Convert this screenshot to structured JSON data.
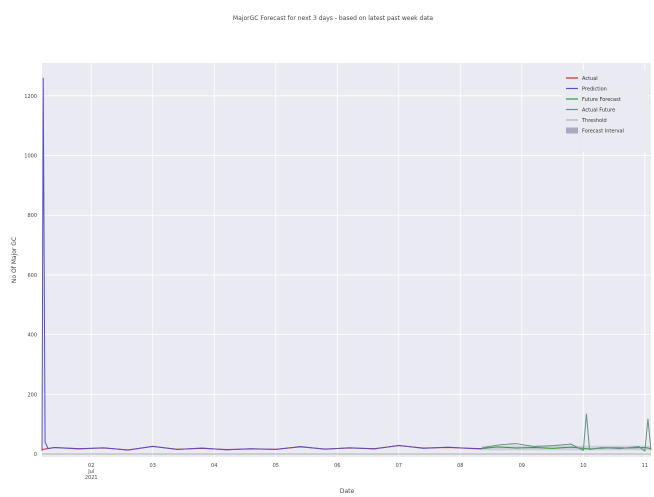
{
  "chart_data": {
    "type": "line",
    "title": "MajorGC Forecast for next 3 days - based on latest past week data",
    "xlabel": "Date",
    "ylabel": "No Of Major GC",
    "x_ticks": [
      "02\nJul\n2021",
      "03",
      "04",
      "05",
      "06",
      "07",
      "08",
      "09",
      "10",
      "11"
    ],
    "x_range_days": [
      1.2,
      11.1
    ],
    "ylim": [
      -10,
      1310
    ],
    "y_ticks": [
      0,
      200,
      400,
      600,
      800,
      1000,
      1200
    ],
    "grid": true,
    "legend_position": "top-right",
    "series": [
      {
        "name": "Actual",
        "color": "#d62728",
        "x": [
          1.2,
          1.4,
          1.8,
          2.2,
          2.6,
          3.0,
          3.4,
          3.8,
          4.2,
          4.6,
          5.0,
          5.4,
          5.8,
          6.2,
          6.6,
          7.0,
          7.4,
          7.8,
          8.2,
          8.35
        ],
        "y": [
          15,
          22,
          18,
          20,
          14,
          25,
          16,
          19,
          15,
          17,
          16,
          24,
          17,
          20,
          18,
          28,
          20,
          22,
          19,
          18
        ]
      },
      {
        "name": "Prediction",
        "color": "#5b4fc4",
        "x": [
          1.2,
          1.22,
          1.25,
          1.3,
          1.4,
          1.8,
          2.2,
          2.6,
          3.0,
          3.4,
          3.8,
          4.2,
          4.6,
          5.0,
          5.4,
          5.8,
          6.2,
          6.6,
          7.0,
          7.4,
          7.8,
          8.2,
          8.35
        ],
        "y": [
          10,
          1260,
          40,
          18,
          22,
          17,
          21,
          13,
          26,
          15,
          20,
          14,
          18,
          15,
          25,
          16,
          21,
          17,
          29,
          19,
          23,
          18,
          17
        ]
      },
      {
        "name": "Future Forecast",
        "color": "#2ca02c",
        "x": [
          8.35,
          8.6,
          8.9,
          9.2,
          9.5,
          9.8,
          10.1,
          10.4,
          10.7,
          11.0,
          11.1
        ],
        "y": [
          18,
          24,
          20,
          22,
          19,
          23,
          17,
          21,
          20,
          22,
          18
        ]
      },
      {
        "name": "Actual Future",
        "color": "#6a8f8a",
        "x": [
          8.35,
          8.6,
          8.9,
          9.2,
          9.5,
          9.8,
          10.0,
          10.05,
          10.1,
          10.3,
          10.6,
          10.9,
          11.0,
          11.05,
          11.1
        ],
        "y": [
          20,
          30,
          35,
          25,
          28,
          33,
          12,
          135,
          15,
          22,
          18,
          25,
          10,
          118,
          12
        ]
      },
      {
        "name": "Threshold",
        "color": "#b0b0b0",
        "x": [
          1.2,
          11.1
        ],
        "y": [
          0,
          0
        ]
      }
    ],
    "forecast_interval": {
      "name": "Forecast Interval",
      "color": "#7f7fa0",
      "x": [
        8.35,
        11.1
      ],
      "lower": [
        12,
        12
      ],
      "upper": [
        28,
        28
      ]
    }
  }
}
